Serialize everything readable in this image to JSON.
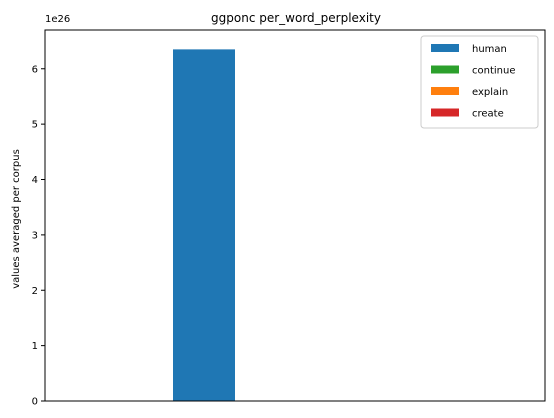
{
  "chart_data": {
    "type": "bar",
    "title": "ggponc per_word_perplexity",
    "xlabel": "",
    "ylabel": "values averaged per corpus",
    "offset_label": "1e26",
    "ylim": [
      0,
      6.7
    ],
    "yticks": [
      0,
      1,
      2,
      3,
      4,
      5,
      6
    ],
    "ytick_labels": [
      "0",
      "1",
      "2",
      "3",
      "4",
      "5",
      "6"
    ],
    "scale_exponent": 26,
    "categories": [
      ""
    ],
    "series": [
      {
        "name": "human",
        "color": "#1f77b4",
        "values": [
          6.35
        ]
      },
      {
        "name": "continue",
        "color": "#2ca02c",
        "values": [
          0
        ]
      },
      {
        "name": "explain",
        "color": "#ff7f0e",
        "values": [
          0
        ]
      },
      {
        "name": "create",
        "color": "#d62728",
        "values": [
          0
        ]
      }
    ],
    "legend_position": "upper-right",
    "grid": false
  }
}
